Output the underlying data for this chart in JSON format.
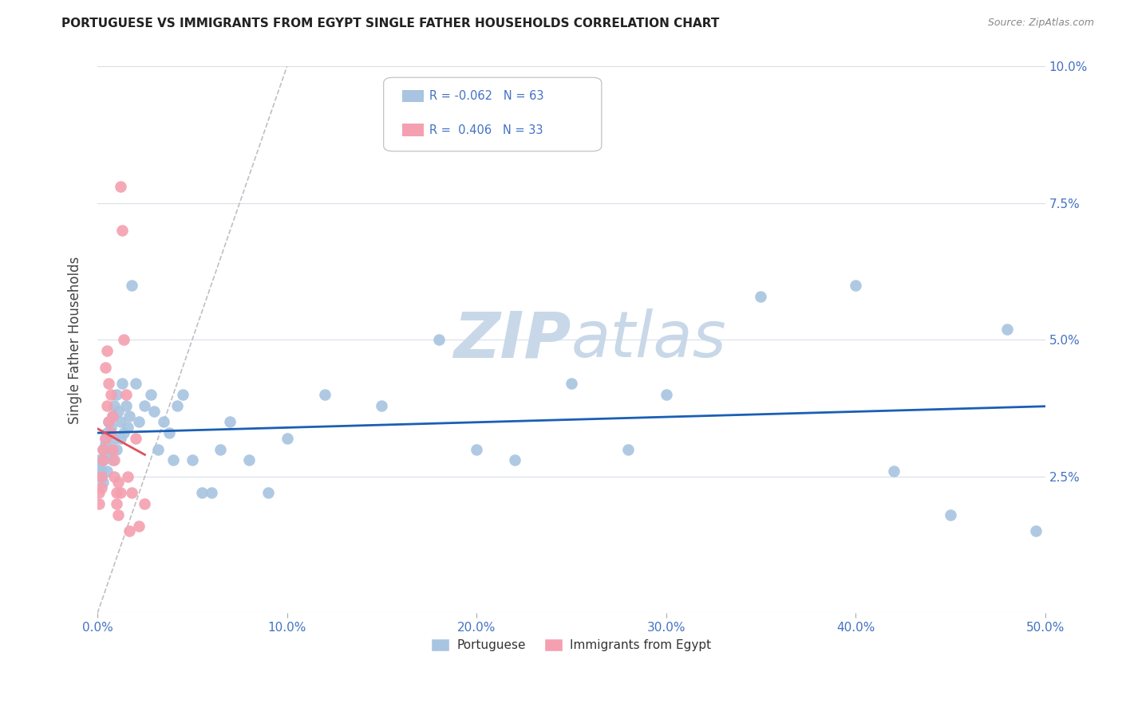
{
  "title": "PORTUGUESE VS IMMIGRANTS FROM EGYPT SINGLE FATHER HOUSEHOLDS CORRELATION CHART",
  "source": "Source: ZipAtlas.com",
  "xlabel": "",
  "ylabel": "Single Father Households",
  "legend_portuguese": "Portuguese",
  "legend_egypt": "Immigrants from Egypt",
  "r_portuguese": "-0.062",
  "n_portuguese": "63",
  "r_egypt": "0.406",
  "n_egypt": "33",
  "xlim": [
    0,
    0.5
  ],
  "ylim": [
    0,
    0.1
  ],
  "xticks": [
    0.0,
    0.1,
    0.2,
    0.3,
    0.4,
    0.5
  ],
  "yticks": [
    0.0,
    0.025,
    0.05,
    0.075,
    0.1
  ],
  "ytick_labels_right": [
    "",
    "2.5%",
    "5.0%",
    "7.5%",
    "10.0%"
  ],
  "xtick_labels": [
    "0.0%",
    "10.0%",
    "20.0%",
    "30.0%",
    "40.0%",
    "50.0%"
  ],
  "color_portuguese": "#a8c4e0",
  "color_egypt": "#f4a0b0",
  "color_line_portuguese": "#1a5fb4",
  "color_line_egypt": "#e05060",
  "watermark_color": "#c8d8e8",
  "portuguese_x": [
    0.001,
    0.001,
    0.002,
    0.002,
    0.003,
    0.003,
    0.003,
    0.004,
    0.004,
    0.005,
    0.005,
    0.006,
    0.006,
    0.007,
    0.007,
    0.008,
    0.008,
    0.009,
    0.009,
    0.01,
    0.01,
    0.011,
    0.012,
    0.012,
    0.013,
    0.014,
    0.015,
    0.016,
    0.017,
    0.018,
    0.02,
    0.022,
    0.025,
    0.028,
    0.03,
    0.032,
    0.035,
    0.038,
    0.04,
    0.042,
    0.045,
    0.05,
    0.055,
    0.06,
    0.065,
    0.07,
    0.08,
    0.09,
    0.1,
    0.12,
    0.15,
    0.18,
    0.2,
    0.22,
    0.25,
    0.28,
    0.3,
    0.35,
    0.4,
    0.42,
    0.45,
    0.48,
    0.495
  ],
  "portuguese_y": [
    0.028,
    0.027,
    0.026,
    0.025,
    0.03,
    0.024,
    0.028,
    0.032,
    0.031,
    0.026,
    0.033,
    0.029,
    0.035,
    0.03,
    0.034,
    0.028,
    0.036,
    0.032,
    0.038,
    0.03,
    0.04,
    0.037,
    0.032,
    0.035,
    0.042,
    0.033,
    0.038,
    0.034,
    0.036,
    0.06,
    0.042,
    0.035,
    0.038,
    0.04,
    0.037,
    0.03,
    0.035,
    0.033,
    0.028,
    0.038,
    0.04,
    0.028,
    0.022,
    0.022,
    0.03,
    0.035,
    0.028,
    0.022,
    0.032,
    0.04,
    0.038,
    0.05,
    0.03,
    0.028,
    0.042,
    0.03,
    0.04,
    0.058,
    0.06,
    0.026,
    0.018,
    0.052,
    0.015
  ],
  "egypt_x": [
    0.001,
    0.001,
    0.002,
    0.002,
    0.003,
    0.003,
    0.004,
    0.004,
    0.005,
    0.005,
    0.006,
    0.006,
    0.007,
    0.007,
    0.008,
    0.008,
    0.009,
    0.009,
    0.01,
    0.01,
    0.011,
    0.011,
    0.012,
    0.012,
    0.013,
    0.014,
    0.015,
    0.016,
    0.017,
    0.018,
    0.02,
    0.022,
    0.025
  ],
  "egypt_y": [
    0.022,
    0.02,
    0.025,
    0.023,
    0.028,
    0.03,
    0.032,
    0.045,
    0.048,
    0.038,
    0.042,
    0.035,
    0.04,
    0.033,
    0.036,
    0.03,
    0.025,
    0.028,
    0.022,
    0.02,
    0.018,
    0.024,
    0.022,
    0.078,
    0.07,
    0.05,
    0.04,
    0.025,
    0.015,
    0.022,
    0.032,
    0.016,
    0.02
  ]
}
